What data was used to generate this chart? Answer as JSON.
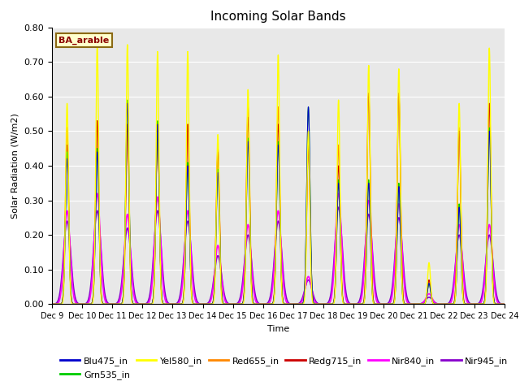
{
  "title": "Incoming Solar Bands",
  "xlabel": "Time",
  "ylabel": "Solar Radiation (W/m2)",
  "ylim": [
    0.0,
    0.8
  ],
  "yticks": [
    0.0,
    0.1,
    0.2,
    0.3,
    0.4,
    0.5,
    0.6,
    0.7,
    0.8
  ],
  "background_color": "#e8e8e8",
  "annotation_text": "BA_arable",
  "annotation_box_color": "#ffffcc",
  "annotation_text_color": "#8b0000",
  "series": {
    "Blu475_in": {
      "color": "#0000cc",
      "lw": 0.8
    },
    "Grn535_in": {
      "color": "#00cc00",
      "lw": 0.8
    },
    "Yel580_in": {
      "color": "#ffff00",
      "lw": 1.0
    },
    "Red655_in": {
      "color": "#ff8800",
      "lw": 1.0
    },
    "Redg715_in": {
      "color": "#cc0000",
      "lw": 0.8
    },
    "Nir840_in": {
      "color": "#ff00ff",
      "lw": 1.2
    },
    "Nir945_in": {
      "color": "#8800cc",
      "lw": 1.2
    }
  },
  "figsize": [
    6.4,
    4.8
  ],
  "dpi": 100,
  "days": [
    9,
    10,
    11,
    12,
    13,
    14,
    15,
    16,
    17,
    18,
    19,
    20,
    21,
    22,
    23
  ],
  "peak_yel": [
    0.58,
    0.75,
    0.75,
    0.73,
    0.73,
    0.49,
    0.62,
    0.72,
    0.5,
    0.59,
    0.69,
    0.68,
    0.12,
    0.58,
    0.74
  ],
  "peak_ora": [
    0.51,
    0.53,
    0.52,
    0.52,
    0.52,
    0.45,
    0.57,
    0.57,
    0.46,
    0.46,
    0.61,
    0.61,
    0.07,
    0.51,
    0.58
  ],
  "peak_red": [
    0.46,
    0.53,
    0.52,
    0.52,
    0.52,
    0.44,
    0.54,
    0.52,
    0.46,
    0.4,
    0.61,
    0.61,
    0.07,
    0.5,
    0.58
  ],
  "peak_blu": [
    0.42,
    0.44,
    0.58,
    0.52,
    0.4,
    0.38,
    0.47,
    0.46,
    0.57,
    0.35,
    0.35,
    0.34,
    0.06,
    0.28,
    0.5
  ],
  "peak_grn": [
    0.44,
    0.45,
    0.59,
    0.53,
    0.41,
    0.39,
    0.48,
    0.47,
    0.57,
    0.36,
    0.36,
    0.35,
    0.06,
    0.29,
    0.51
  ],
  "peak_mag": [
    0.27,
    0.32,
    0.26,
    0.31,
    0.27,
    0.17,
    0.23,
    0.27,
    0.08,
    0.32,
    0.3,
    0.29,
    0.03,
    0.23,
    0.23
  ],
  "peak_pur": [
    0.24,
    0.27,
    0.22,
    0.27,
    0.24,
    0.14,
    0.2,
    0.24,
    0.07,
    0.28,
    0.26,
    0.25,
    0.02,
    0.2,
    0.2
  ],
  "xtick_labels": [
    "Dec 9",
    "Dec 10",
    "Dec 11",
    "Dec 12",
    "Dec 13",
    "Dec 14",
    "Dec 15",
    "Dec 16",
    "Dec 17",
    "Dec 18",
    "Dec 19",
    "Dec 20",
    "Dec 21",
    "Dec 22",
    "Dec 23",
    "Dec 24"
  ]
}
